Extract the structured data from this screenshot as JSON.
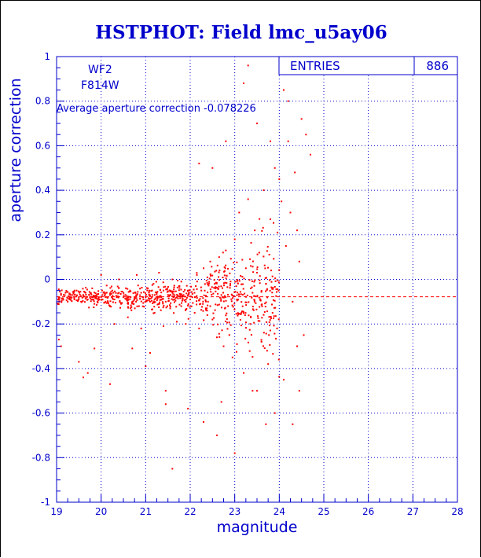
{
  "colors": {
    "axis": "#0000cc",
    "points": "#ff0000",
    "title": "#0000cc",
    "grid": "#0000cc",
    "mean_line": "#ff0000",
    "background": "#ffffff"
  },
  "stats_box": {
    "label": "ENTRIES",
    "value": "886"
  },
  "annotations": {
    "camera": "WF2",
    "filter": "F814W",
    "average_text": "Average aperture correction -0.078226"
  },
  "chart_data": {
    "type": "scatter",
    "title": "HSTPHOT: Field lmc_u5ay06",
    "xlabel": "magnitude",
    "ylabel": "aperture correction",
    "xlim": [
      19,
      28
    ],
    "ylim": [
      -1,
      1
    ],
    "xticks": [
      19,
      20,
      21,
      22,
      23,
      24,
      25,
      26,
      27,
      28
    ],
    "yticks": [
      -1,
      -0.8,
      -0.6,
      -0.4,
      -0.2,
      0,
      0.2,
      0.4,
      0.6,
      0.8,
      1
    ],
    "xtick_labels": [
      "19",
      "20",
      "21",
      "22",
      "23",
      "24",
      "25",
      "26",
      "27",
      "28"
    ],
    "ytick_labels": [
      "-1",
      "-0.8",
      "-0.6",
      "-0.4",
      "-0.2",
      "0",
      "0.2",
      "0.4",
      "0.6",
      "0.8",
      "1"
    ],
    "grid": true,
    "entries": 886,
    "mean_aperture_correction": -0.078226,
    "representative_points": [
      [
        19.05,
        -0.08
      ],
      [
        19.1,
        -0.07
      ],
      [
        19.15,
        -0.09
      ],
      [
        19.2,
        -0.06
      ],
      [
        19.25,
        -0.1
      ],
      [
        19.3,
        -0.08
      ],
      [
        19.35,
        -0.07
      ],
      [
        19.4,
        -0.09
      ],
      [
        19.45,
        -0.05
      ],
      [
        19.5,
        -0.08
      ],
      [
        19.55,
        -0.1
      ],
      [
        19.6,
        -0.07
      ],
      [
        19.65,
        -0.06
      ],
      [
        19.7,
        -0.09
      ],
      [
        19.75,
        -0.08
      ],
      [
        19.8,
        -0.04
      ],
      [
        19.85,
        -0.11
      ],
      [
        19.9,
        -0.07
      ],
      [
        19.95,
        -0.08
      ],
      [
        20.0,
        -0.09
      ],
      [
        20.05,
        -0.06
      ],
      [
        20.1,
        -0.08
      ],
      [
        20.15,
        -0.1
      ],
      [
        20.2,
        -0.07
      ],
      [
        20.25,
        -0.05
      ],
      [
        20.3,
        -0.09
      ],
      [
        20.35,
        -0.08
      ],
      [
        20.4,
        -0.06
      ],
      [
        20.45,
        -0.11
      ],
      [
        20.5,
        -0.08
      ],
      [
        20.55,
        -0.07
      ],
      [
        20.6,
        -0.09
      ],
      [
        20.65,
        -0.05
      ],
      [
        20.7,
        -0.1
      ],
      [
        20.75,
        -0.08
      ],
      [
        20.8,
        -0.07
      ],
      [
        20.85,
        -0.12
      ],
      [
        20.9,
        -0.06
      ],
      [
        20.95,
        -0.09
      ],
      [
        21.0,
        -0.08
      ],
      [
        21.05,
        -0.04
      ],
      [
        21.1,
        -0.1
      ],
      [
        21.15,
        -0.07
      ],
      [
        21.2,
        -0.09
      ],
      [
        21.25,
        -0.06
      ],
      [
        21.3,
        -0.11
      ],
      [
        21.35,
        -0.08
      ],
      [
        21.4,
        -0.05
      ],
      [
        21.45,
        -0.1
      ],
      [
        21.5,
        -0.07
      ],
      [
        21.55,
        -0.13
      ],
      [
        21.6,
        -0.06
      ],
      [
        21.65,
        -0.09
      ],
      [
        21.7,
        -0.08
      ],
      [
        21.75,
        -0.03
      ],
      [
        21.8,
        -0.12
      ],
      [
        21.85,
        -0.07
      ],
      [
        21.9,
        -0.1
      ],
      [
        21.95,
        -0.05
      ],
      [
        22.0,
        -0.09
      ],
      [
        19.05,
        -0.27
      ],
      [
        19.1,
        -0.3
      ],
      [
        19.5,
        -0.37
      ],
      [
        19.6,
        -0.44
      ],
      [
        19.7,
        -0.42
      ],
      [
        19.85,
        -0.31
      ],
      [
        20.2,
        -0.47
      ],
      [
        20.7,
        -0.31
      ],
      [
        21.0,
        -0.39
      ],
      [
        21.1,
        -0.33
      ],
      [
        21.45,
        -0.5
      ],
      [
        21.45,
        -0.56
      ],
      [
        21.6,
        -0.85
      ],
      [
        21.95,
        -0.58
      ],
      [
        20.1,
        -0.1
      ],
      [
        20.3,
        -0.2
      ],
      [
        20.6,
        -0.17
      ],
      [
        20.9,
        -0.22
      ],
      [
        21.2,
        -0.15
      ],
      [
        21.4,
        -0.21
      ],
      [
        21.7,
        -0.19
      ],
      [
        21.9,
        -0.2
      ],
      [
        20.0,
        0.02
      ],
      [
        20.4,
        0.0
      ],
      [
        20.8,
        0.02
      ],
      [
        21.3,
        0.03
      ],
      [
        21.6,
        0.0
      ],
      [
        21.8,
        -0.01
      ],
      [
        22.05,
        -0.08
      ],
      [
        22.1,
        -0.15
      ],
      [
        22.15,
        0.02
      ],
      [
        22.2,
        -0.22
      ],
      [
        22.25,
        -0.05
      ],
      [
        22.3,
        0.05
      ],
      [
        22.35,
        -0.13
      ],
      [
        22.4,
        -0.1
      ],
      [
        22.45,
        0.08
      ],
      [
        22.5,
        -0.18
      ],
      [
        22.55,
        -0.02
      ],
      [
        22.6,
        -0.26
      ],
      [
        22.65,
        0.1
      ],
      [
        22.7,
        -0.07
      ],
      [
        22.75,
        -0.3
      ],
      [
        22.8,
        0.13
      ],
      [
        22.85,
        -0.12
      ],
      [
        22.9,
        -0.02
      ],
      [
        22.95,
        -0.35
      ],
      [
        23.0,
        0.18
      ],
      [
        23.05,
        -0.09
      ],
      [
        23.1,
        0.3
      ],
      [
        23.15,
        -0.15
      ],
      [
        23.2,
        -0.42
      ],
      [
        23.25,
        0.05
      ],
      [
        23.3,
        0.36
      ],
      [
        23.35,
        -0.2
      ],
      [
        23.4,
        -0.06
      ],
      [
        23.45,
        0.22
      ],
      [
        23.5,
        -0.5
      ],
      [
        23.55,
        0.12
      ],
      [
        23.6,
        -0.28
      ],
      [
        23.65,
        0.4
      ],
      [
        23.7,
        -0.02
      ],
      [
        23.75,
        -0.38
      ],
      [
        23.8,
        0.27
      ],
      [
        23.85,
        -0.15
      ],
      [
        23.9,
        0.5
      ],
      [
        23.95,
        -0.22
      ],
      [
        24.0,
        0.45
      ],
      [
        22.2,
        0.52
      ],
      [
        22.3,
        -0.64
      ],
      [
        22.5,
        0.5
      ],
      [
        22.6,
        -0.7
      ],
      [
        22.7,
        -0.55
      ],
      [
        22.8,
        0.62
      ],
      [
        23.0,
        -0.78
      ],
      [
        23.2,
        0.88
      ],
      [
        23.3,
        0.96
      ],
      [
        23.4,
        -0.5
      ],
      [
        23.5,
        0.7
      ],
      [
        23.7,
        -0.65
      ],
      [
        23.8,
        0.62
      ],
      [
        23.9,
        -0.6
      ],
      [
        24.05,
        0.35
      ],
      [
        24.1,
        0.85
      ],
      [
        24.15,
        0.15
      ],
      [
        24.2,
        0.62
      ],
      [
        24.25,
        0.3
      ],
      [
        24.3,
        -0.1
      ],
      [
        24.35,
        0.48
      ],
      [
        24.4,
        -0.3
      ],
      [
        24.45,
        0.08
      ],
      [
        24.5,
        0.72
      ],
      [
        24.55,
        -0.25
      ],
      [
        24.6,
        0.65
      ],
      [
        24.3,
        -0.65
      ],
      [
        24.45,
        -0.5
      ],
      [
        24.7,
        0.56
      ],
      [
        24.1,
        -0.45
      ],
      [
        24.2,
        0.8
      ],
      [
        24.4,
        0.22
      ]
    ]
  }
}
